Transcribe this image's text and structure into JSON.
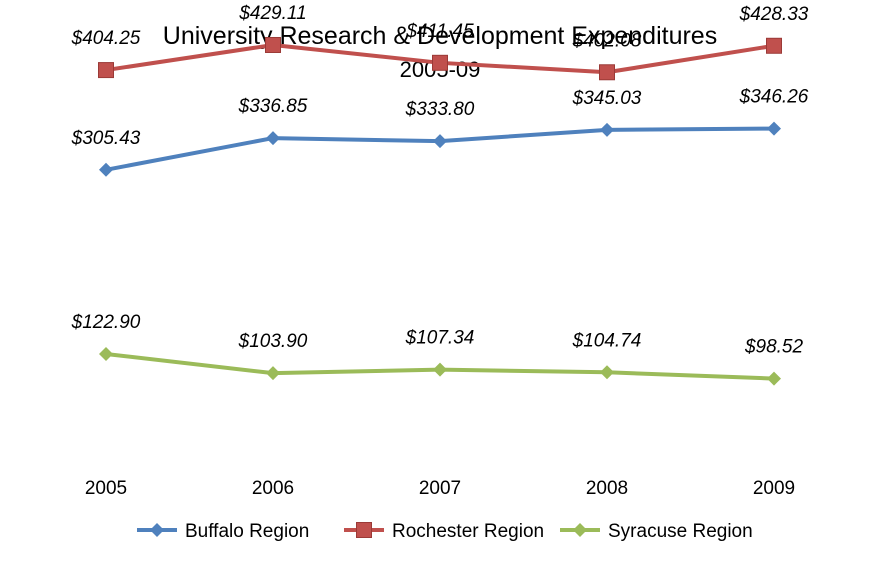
{
  "chart_data": {
    "type": "line",
    "title": "University Research & Development Expenditures",
    "subtitle": "2005-09",
    "categories": [
      "2005",
      "2006",
      "2007",
      "2008",
      "2009"
    ],
    "xlabel": "",
    "ylabel": "",
    "grid": false,
    "legend": "bottom",
    "ylim": [
      0,
      550
    ],
    "series": [
      {
        "name": "Buffalo Region",
        "values": [
          305.43,
          336.85,
          333.8,
          345.03,
          346.26
        ],
        "labels": [
          "$305.43",
          "$336.85",
          "$333.80",
          "$345.03",
          "$346.26"
        ],
        "color": "#4F81BD",
        "marker": "diamond"
      },
      {
        "name": "Rochester Region",
        "values": [
          404.25,
          429.11,
          411.45,
          402.08,
          428.33
        ],
        "labels": [
          "$404.25",
          "$429.11",
          "$411.45",
          "$402.08",
          "$428.33"
        ],
        "color": "#C0504D",
        "marker": "square"
      },
      {
        "name": "Syracuse Region",
        "values": [
          122.9,
          103.9,
          107.34,
          104.74,
          98.52
        ],
        "labels": [
          "$122.90",
          "$103.90",
          "$107.34",
          "$104.74",
          "$98.52"
        ],
        "color": "#9BBB59",
        "marker": "diamond"
      }
    ]
  }
}
